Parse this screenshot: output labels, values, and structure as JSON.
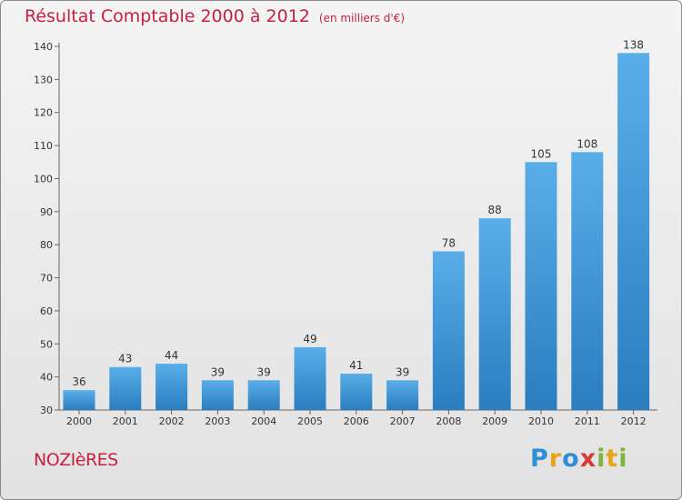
{
  "header": {
    "title": "Résultat Comptable 2000 à 2012",
    "unit": "(en milliers d'€)"
  },
  "footer": {
    "commune": "NOZIèRES",
    "logo_text": "Proxiti"
  },
  "colors": {
    "title": "#c8203f",
    "bar_top": "#5aaee8",
    "bar_bottom": "#2a7dbf"
  },
  "chart_data": {
    "type": "bar",
    "title": "Résultat Comptable 2000 à 2012",
    "xlabel": "",
    "ylabel": "(en milliers d'€)",
    "categories": [
      "2000",
      "2001",
      "2002",
      "2003",
      "2004",
      "2005",
      "2006",
      "2007",
      "2008",
      "2009",
      "2010",
      "2011",
      "2012"
    ],
    "values": [
      36,
      43,
      44,
      39,
      39,
      49,
      41,
      39,
      78,
      88,
      105,
      108,
      138
    ],
    "ylim": [
      30,
      140
    ],
    "yticks": [
      30,
      40,
      50,
      60,
      70,
      80,
      90,
      100,
      110,
      120,
      130,
      140
    ],
    "grid": false,
    "legend": "none"
  }
}
